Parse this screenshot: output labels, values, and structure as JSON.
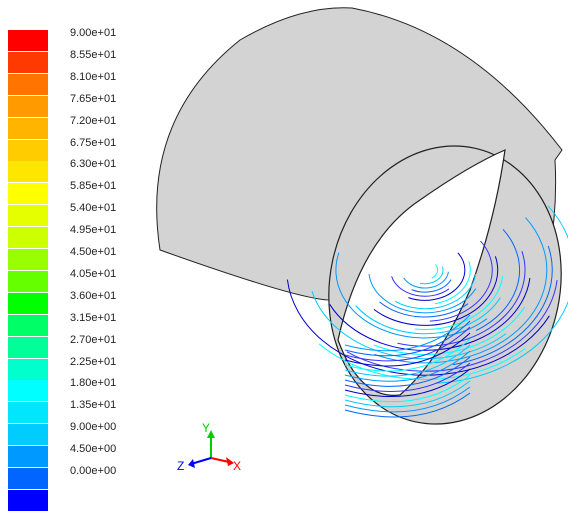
{
  "colorbar": {
    "colors": [
      "#ff0000",
      "#ff3a00",
      "#ff7500",
      "#ff9a00",
      "#ffb400",
      "#ffcc00",
      "#ffe600",
      "#ffff00",
      "#e6ff00",
      "#ccff00",
      "#99ff00",
      "#66ff00",
      "#00ff00",
      "#00ff66",
      "#00ff99",
      "#00ffcc",
      "#00ffff",
      "#00e6ff",
      "#00ccff",
      "#0099ff",
      "#0066ff",
      "#0000ff"
    ],
    "labels": [
      "9.00e+01",
      "8.55e+01",
      "8.10e+01",
      "7.65e+01",
      "7.20e+01",
      "6.75e+01",
      "6.30e+01",
      "5.85e+01",
      "5.40e+01",
      "4.95e+01",
      "4.50e+01",
      "4.05e+01",
      "3.60e+01",
      "3.15e+01",
      "2.70e+01",
      "2.25e+01",
      "1.80e+01",
      "1.35e+01",
      "9.00e+00",
      "4.50e+00",
      "0.00e+00"
    ]
  },
  "axes": {
    "x_label": "X",
    "y_label": "Y",
    "z_label": "Z",
    "x_color": "#ff0000",
    "y_color": "#00cc00",
    "z_color": "#0000ff"
  },
  "geometry": {
    "body_color": "#d3d3d3",
    "edge_color": "#222222"
  },
  "pathlines": {
    "colors": [
      "#00ffff",
      "#00ccff",
      "#0099ff",
      "#0066ff",
      "#3333ff",
      "#0000cc"
    ]
  }
}
